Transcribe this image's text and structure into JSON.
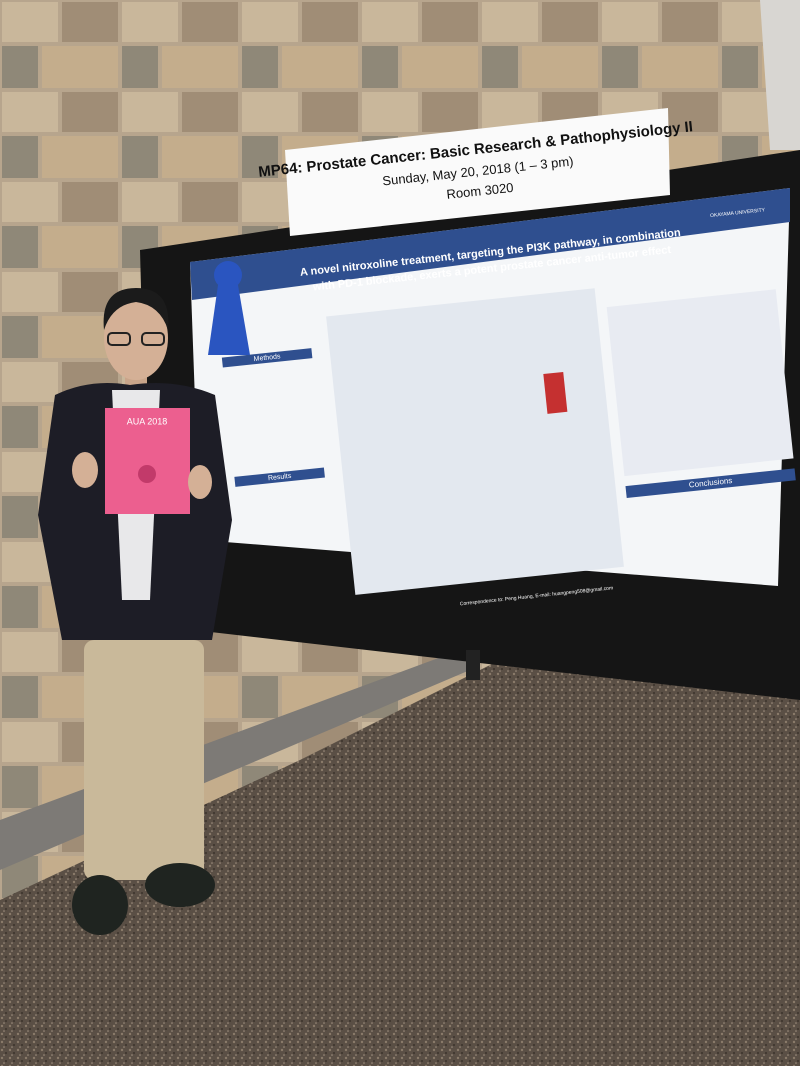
{
  "sign": {
    "title": "MP64: Prostate Cancer: Basic Research & Pathophysiology II",
    "date": "Sunday, May 20, 2018 (1 – 3 pm)",
    "room": "Room 3020"
  },
  "poster": {
    "title_line1": "A novel nitroxoline treatment, targeting the PI3K pathway, in combination",
    "title_line2": "with PD-1 blockade, exerts a potent prostate cancer anti-tumor effect",
    "logo": "OKAYAMA UNIVERSITY",
    "sections": [
      "Methods",
      "Results",
      "Conclusions"
    ],
    "footer": "Correspondence to: Peng Huang, E-mail: huangpeng508@gmail.com"
  },
  "certificate": {
    "title": "AUA 2018"
  }
}
